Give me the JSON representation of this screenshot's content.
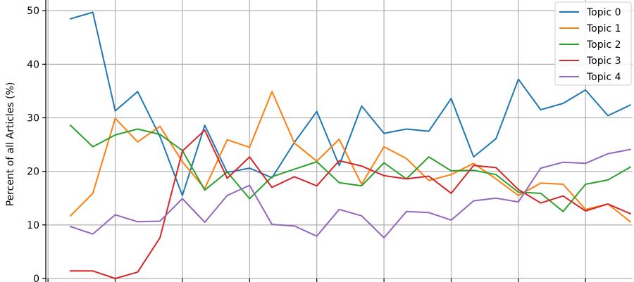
{
  "chart_data": {
    "type": "line",
    "title": "",
    "xlabel": "",
    "ylabel": "Percent of all Articles (%)",
    "ylim": [
      0,
      52
    ],
    "yticks": [
      0,
      10,
      20,
      30,
      40,
      50
    ],
    "xlim": [
      -1.1,
      25.1
    ],
    "x_grid": [
      -1,
      2,
      5,
      8,
      11,
      14,
      17,
      20,
      23
    ],
    "grid": true,
    "legend_position": "top-right",
    "x": [
      0,
      1,
      2,
      3,
      4,
      5,
      6,
      7,
      8,
      9,
      10,
      11,
      12,
      13,
      14,
      15,
      16,
      17,
      18,
      19,
      20,
      21,
      22,
      23,
      24,
      25
    ],
    "series": [
      {
        "name": "Topic 0",
        "color": "#1f77b4",
        "values": [
          48.5,
          49.7,
          31.3,
          34.9,
          26.5,
          15.5,
          28.6,
          19.8,
          20.6,
          18.8,
          25.4,
          31.2,
          21.1,
          32.2,
          27.1,
          27.9,
          27.5,
          33.6,
          22.7,
          26.1,
          37.2,
          31.5,
          32.7,
          35.2,
          30.4,
          32.4
        ]
      },
      {
        "name": "Topic 1",
        "color": "#ff7f0e",
        "values": [
          11.7,
          15.9,
          29.9,
          25.5,
          28.4,
          21.8,
          16.8,
          25.9,
          24.5,
          34.9,
          25.3,
          21.9,
          26.0,
          17.6,
          24.6,
          22.4,
          18.3,
          19.4,
          21.5,
          18.6,
          15.5,
          17.8,
          17.6,
          12.9,
          13.9,
          10.6
        ]
      },
      {
        "name": "Topic 2",
        "color": "#2ca02c",
        "values": [
          28.6,
          24.6,
          26.8,
          27.9,
          26.9,
          23.9,
          16.5,
          19.9,
          14.9,
          19.0,
          20.4,
          21.8,
          17.9,
          17.3,
          21.6,
          18.6,
          22.7,
          20.1,
          20.2,
          19.4,
          16.1,
          15.9,
          12.5,
          17.6,
          18.4,
          20.8
        ]
      },
      {
        "name": "Topic 3",
        "color": "#d62728",
        "values": [
          1.4,
          1.4,
          0.0,
          1.2,
          7.6,
          23.8,
          27.7,
          18.7,
          22.7,
          17.0,
          19.0,
          17.3,
          22.0,
          21.0,
          19.2,
          18.6,
          19.1,
          15.9,
          21.1,
          20.7,
          16.6,
          14.1,
          15.4,
          12.6,
          13.9,
          12.1
        ]
      },
      {
        "name": "Topic 4",
        "color": "#9467bd",
        "values": [
          9.7,
          8.3,
          11.9,
          10.6,
          10.7,
          14.9,
          10.5,
          15.5,
          17.4,
          10.1,
          9.8,
          7.9,
          12.9,
          11.7,
          7.6,
          12.5,
          12.3,
          10.9,
          14.5,
          15.0,
          14.3,
          20.6,
          21.7,
          21.5,
          23.3,
          24.1
        ]
      }
    ]
  }
}
